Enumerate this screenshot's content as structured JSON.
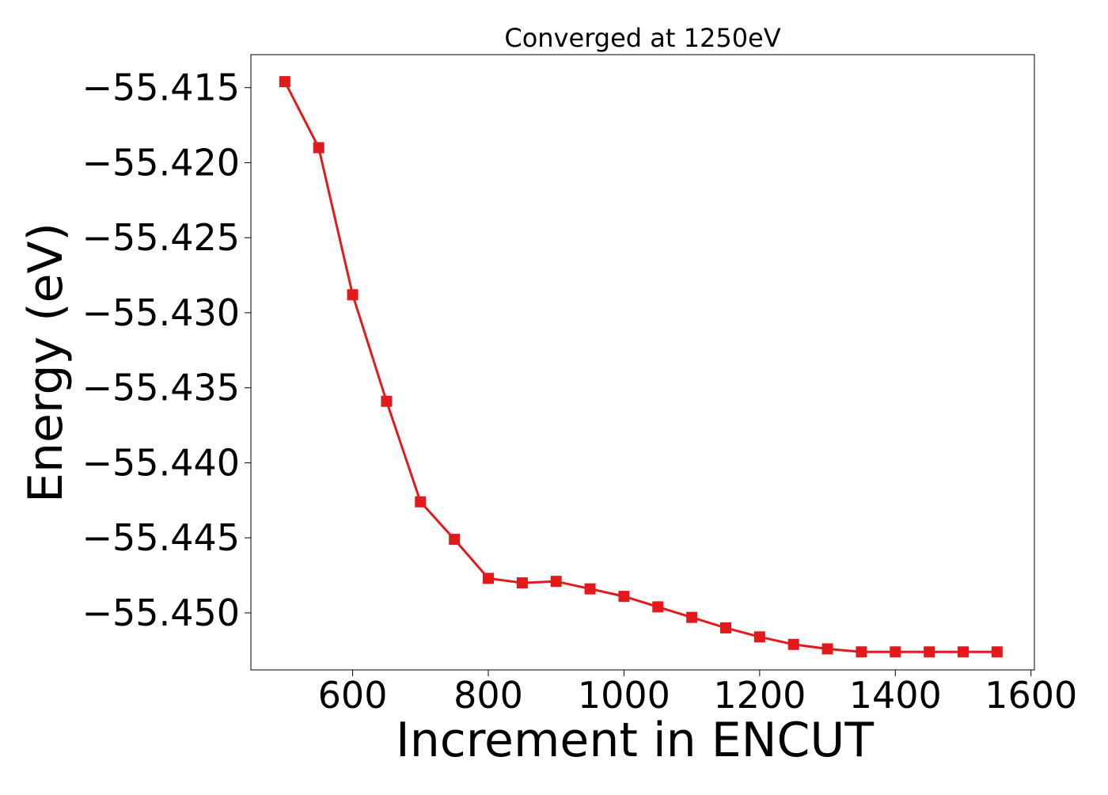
{
  "chart_data": {
    "type": "line",
    "title": "Converged at 1250eV",
    "xlabel": "Increment in ENCUT",
    "ylabel": "Energy (eV)",
    "xlim": [
      450,
      1605
    ],
    "ylim": [
      -55.4538,
      -55.4128
    ],
    "xticks": [
      600,
      800,
      1000,
      1200,
      1400,
      1600
    ],
    "yticks": [
      -55.415,
      -55.42,
      -55.425,
      -55.43,
      -55.435,
      -55.44,
      -55.445,
      -55.45
    ],
    "ytick_labels": [
      "−55.415",
      "−55.420",
      "−55.425",
      "−55.430",
      "−55.435",
      "−55.440",
      "−55.445",
      "−55.450"
    ],
    "grid": false,
    "series": [
      {
        "color": "#e31a1c",
        "marker": "square",
        "x": [
          500,
          550,
          600,
          650,
          700,
          750,
          800,
          850,
          900,
          950,
          1000,
          1050,
          1100,
          1150,
          1200,
          1250,
          1300,
          1350,
          1400,
          1450,
          1500,
          1550
        ],
        "y": [
          -55.4146,
          -55.419,
          -55.4288,
          -55.4359,
          -55.4426,
          -55.4451,
          -55.4477,
          -55.448,
          -55.4479,
          -55.4484,
          -55.4489,
          -55.4496,
          -55.4503,
          -55.451,
          -55.4516,
          -55.4521,
          -55.4524,
          -55.4526,
          -55.4526,
          -55.4526,
          -55.4526,
          -55.4526
        ]
      }
    ]
  }
}
